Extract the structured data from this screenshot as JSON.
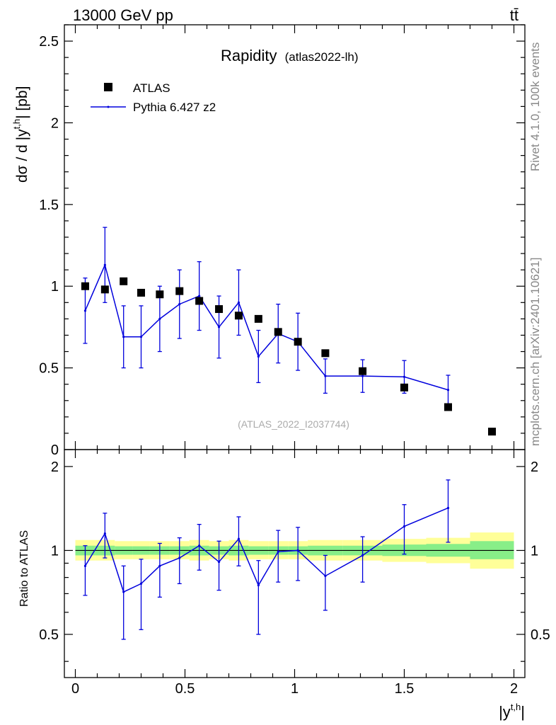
{
  "header": {
    "energy_label": "13000 GeV pp",
    "process_label": "tt̄"
  },
  "sidebar": {
    "rivet_label": "Rivet 4.1.0,  100k events",
    "mcplots_label": "mcplots.cern.ch [arXiv:2401.10621]"
  },
  "chart_data": [
    {
      "type": "scatter",
      "title": "Rapidity",
      "subtitle": "(atlas2022-lh)",
      "watermark": "(ATLAS_2022_I2037744)",
      "ylabel": "dσ / d |y^{t,h}| [pb]",
      "xlabel": "|y^{t,h}|",
      "xlim": [
        -0.05,
        2.05
      ],
      "ylim": [
        0,
        2.6
      ],
      "yticks": [
        "0",
        "0.5",
        "1",
        "1.5",
        "2",
        "2.5"
      ],
      "legend": {
        "placement": "top-left",
        "data_label": "ATLAS",
        "mc_label": "Pythia 6.427 z2"
      },
      "series": [
        {
          "name": "ATLAS",
          "style": "square-markers",
          "color": "#000000",
          "x": [
            0.045,
            0.135,
            0.22,
            0.3,
            0.385,
            0.475,
            0.565,
            0.655,
            0.745,
            0.835,
            0.925,
            1.015,
            1.14,
            1.31,
            1.5,
            1.7,
            1.9
          ],
          "y": [
            1.0,
            0.98,
            1.03,
            0.96,
            0.95,
            0.97,
            0.91,
            0.86,
            0.82,
            0.8,
            0.72,
            0.66,
            0.59,
            0.48,
            0.38,
            0.26,
            0.11
          ]
        },
        {
          "name": "Pythia 6.427 z2",
          "style": "line-with-errors",
          "color": "#0000dd",
          "x": [
            0.045,
            0.135,
            0.22,
            0.3,
            0.385,
            0.475,
            0.565,
            0.655,
            0.745,
            0.835,
            0.925,
            1.015,
            1.14,
            1.31,
            1.5,
            1.7
          ],
          "y": [
            0.85,
            1.13,
            0.69,
            0.69,
            0.8,
            0.89,
            0.94,
            0.75,
            0.9,
            0.57,
            0.71,
            0.66,
            0.45,
            0.45,
            0.445,
            0.365
          ],
          "err": [
            0.2,
            0.23,
            0.19,
            0.19,
            0.2,
            0.21,
            0.21,
            0.19,
            0.2,
            0.16,
            0.18,
            0.175,
            0.105,
            0.1,
            0.1,
            0.09
          ]
        }
      ]
    },
    {
      "type": "line",
      "ylabel": "Ratio to ATLAS",
      "xlabel": "|y^{t,h}|",
      "xlim": [
        -0.05,
        2.05
      ],
      "ylim": [
        0.35,
        2.3
      ],
      "yscale": "log",
      "xticks": [
        "0",
        "0.5",
        "1",
        "1.5",
        "2"
      ],
      "yticks": [
        "0.5",
        "1",
        "2"
      ],
      "bands": {
        "edges": [
          0.0,
          0.09,
          0.18,
          0.26,
          0.34,
          0.43,
          0.52,
          0.61,
          0.7,
          0.79,
          0.88,
          0.97,
          1.06,
          1.22,
          1.4,
          1.6,
          1.8,
          2.0
        ],
        "yellow_lo": [
          0.92,
          0.92,
          0.93,
          0.93,
          0.93,
          0.93,
          0.92,
          0.93,
          0.92,
          0.93,
          0.93,
          0.93,
          0.92,
          0.92,
          0.91,
          0.9,
          0.86
        ],
        "yellow_hi": [
          1.09,
          1.09,
          1.08,
          1.08,
          1.08,
          1.08,
          1.09,
          1.08,
          1.09,
          1.08,
          1.08,
          1.08,
          1.09,
          1.09,
          1.1,
          1.11,
          1.16
        ],
        "green_lo": [
          0.96,
          0.96,
          0.965,
          0.965,
          0.965,
          0.965,
          0.96,
          0.965,
          0.96,
          0.965,
          0.965,
          0.965,
          0.96,
          0.96,
          0.955,
          0.95,
          0.93
        ],
        "green_hi": [
          1.04,
          1.04,
          1.035,
          1.035,
          1.035,
          1.035,
          1.04,
          1.035,
          1.04,
          1.035,
          1.035,
          1.035,
          1.04,
          1.04,
          1.05,
          1.055,
          1.08
        ]
      },
      "series": [
        {
          "name": "Pythia 6.427 z2 / ATLAS",
          "color": "#0000dd",
          "x": [
            0.045,
            0.135,
            0.22,
            0.3,
            0.385,
            0.475,
            0.565,
            0.655,
            0.745,
            0.835,
            0.925,
            1.015,
            1.14,
            1.31,
            1.5,
            1.7
          ],
          "y": [
            0.88,
            1.15,
            0.71,
            0.76,
            0.88,
            0.94,
            1.04,
            0.91,
            1.1,
            0.75,
            0.99,
            1.0,
            0.81,
            0.96,
            1.22,
            1.42
          ],
          "err_lo": [
            0.19,
            0.21,
            0.23,
            0.24,
            0.2,
            0.18,
            0.19,
            0.19,
            0.22,
            0.25,
            0.22,
            0.22,
            0.2,
            0.19,
            0.25,
            0.35
          ],
          "err_hi": [
            0.16,
            0.21,
            0.17,
            0.17,
            0.18,
            0.17,
            0.2,
            0.17,
            0.22,
            0.17,
            0.19,
            0.21,
            0.15,
            0.16,
            0.24,
            0.37
          ]
        }
      ]
    }
  ]
}
